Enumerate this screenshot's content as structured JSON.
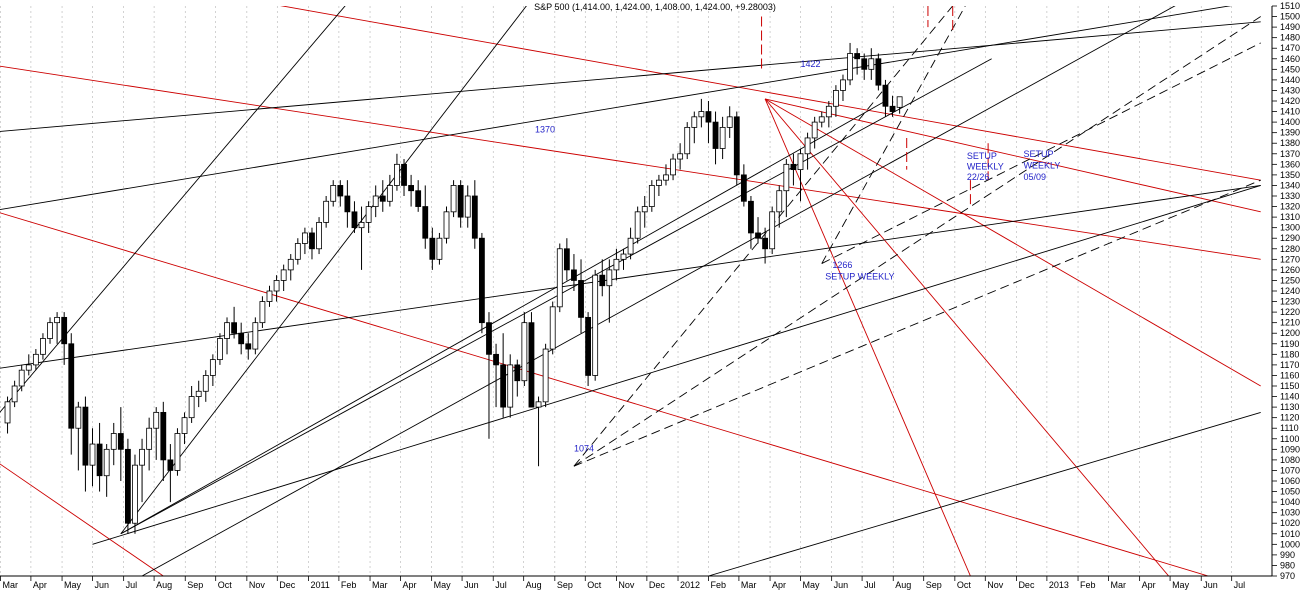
{
  "chart_data": {
    "type": "candlestick",
    "title": "S&P 500 (1,414.00, 1,424.00, 1,408.00, 1,424.00, +9.28003)",
    "y_axis": {
      "min": 970,
      "max": 1510,
      "step": 10,
      "position": "right"
    },
    "x_axis": {
      "tick_labels": [
        "Mar",
        "Apr",
        "May",
        "Jun",
        "Jul",
        "Aug",
        "Sep",
        "Oct",
        "Nov",
        "Dec",
        "2011",
        "Feb",
        "Mar",
        "Apr",
        "May",
        "Jun",
        "Jul",
        "Aug",
        "Sep",
        "Oct",
        "Nov",
        "Dec",
        "2012",
        "Feb",
        "Mar",
        "Apr",
        "May",
        "Jun",
        "Jul",
        "Aug",
        "Sep",
        "Oct",
        "Nov",
        "Dec",
        "2013",
        "Feb",
        "Mar",
        "Apr",
        "May",
        "Jun",
        "Jul"
      ],
      "weeks_from_first_label": [
        0,
        4.3,
        8.7,
        13,
        17.4,
        21.7,
        26.1,
        30.4,
        34.8,
        39.1,
        43.5,
        47.8,
        52.2,
        56.5,
        60.9,
        65.2,
        69.6,
        73.9,
        78.3,
        82.6,
        87,
        91.3,
        95.7,
        100,
        104.3,
        108.7,
        113,
        117.4,
        121.7,
        126.1,
        130.4,
        134.8,
        139.1,
        143.5,
        147.8,
        152.2,
        156.5,
        160.9,
        165.2,
        169.6,
        173.9
      ],
      "grid": "vertical dotted"
    },
    "candles_note": "weekly OHLC, open/high/low/close",
    "candles": [
      [
        1115,
        1140,
        1105,
        1135
      ],
      [
        1135,
        1155,
        1130,
        1150
      ],
      [
        1150,
        1170,
        1145,
        1165
      ],
      [
        1165,
        1180,
        1160,
        1170
      ],
      [
        1170,
        1185,
        1165,
        1180
      ],
      [
        1180,
        1200,
        1175,
        1195
      ],
      [
        1195,
        1215,
        1190,
        1210
      ],
      [
        1210,
        1220,
        1190,
        1215
      ],
      [
        1215,
        1220,
        1170,
        1190
      ],
      [
        1190,
        1200,
        1085,
        1110
      ],
      [
        1110,
        1135,
        1070,
        1130
      ],
      [
        1130,
        1140,
        1050,
        1075
      ],
      [
        1075,
        1110,
        1055,
        1095
      ],
      [
        1095,
        1115,
        1050,
        1065
      ],
      [
        1065,
        1095,
        1045,
        1090
      ],
      [
        1090,
        1115,
        1075,
        1105
      ],
      [
        1105,
        1130,
        1060,
        1090
      ],
      [
        1090,
        1100,
        1010,
        1020
      ],
      [
        1020,
        1085,
        1010,
        1075
      ],
      [
        1075,
        1100,
        1040,
        1090
      ],
      [
        1090,
        1120,
        1070,
        1110
      ],
      [
        1110,
        1130,
        1080,
        1125
      ],
      [
        1125,
        1135,
        1060,
        1080
      ],
      [
        1080,
        1095,
        1040,
        1070
      ],
      [
        1070,
        1110,
        1065,
        1105
      ],
      [
        1105,
        1125,
        1095,
        1120
      ],
      [
        1120,
        1150,
        1115,
        1140
      ],
      [
        1140,
        1155,
        1130,
        1145
      ],
      [
        1145,
        1165,
        1135,
        1160
      ],
      [
        1160,
        1180,
        1150,
        1175
      ],
      [
        1175,
        1200,
        1170,
        1195
      ],
      [
        1195,
        1215,
        1180,
        1210
      ],
      [
        1210,
        1225,
        1195,
        1200
      ],
      [
        1200,
        1210,
        1180,
        1190
      ],
      [
        1190,
        1200,
        1175,
        1185
      ],
      [
        1185,
        1215,
        1180,
        1210
      ],
      [
        1210,
        1235,
        1205,
        1230
      ],
      [
        1230,
        1245,
        1225,
        1240
      ],
      [
        1240,
        1255,
        1230,
        1250
      ],
      [
        1250,
        1265,
        1240,
        1260
      ],
      [
        1260,
        1275,
        1250,
        1270
      ],
      [
        1270,
        1290,
        1265,
        1285
      ],
      [
        1285,
        1300,
        1275,
        1295
      ],
      [
        1295,
        1300,
        1270,
        1280
      ],
      [
        1280,
        1310,
        1275,
        1305
      ],
      [
        1305,
        1330,
        1300,
        1325
      ],
      [
        1325,
        1345,
        1320,
        1340
      ],
      [
        1340,
        1345,
        1320,
        1330
      ],
      [
        1330,
        1345,
        1300,
        1315
      ],
      [
        1315,
        1325,
        1295,
        1300
      ],
      [
        1300,
        1320,
        1260,
        1305
      ],
      [
        1305,
        1325,
        1295,
        1320
      ],
      [
        1320,
        1340,
        1310,
        1330
      ],
      [
        1330,
        1345,
        1315,
        1325
      ],
      [
        1325,
        1350,
        1320,
        1340
      ],
      [
        1340,
        1370,
        1335,
        1360
      ],
      [
        1360,
        1365,
        1330,
        1340
      ],
      [
        1340,
        1350,
        1320,
        1335
      ],
      [
        1335,
        1345,
        1315,
        1320
      ],
      [
        1320,
        1340,
        1280,
        1290
      ],
      [
        1290,
        1300,
        1260,
        1270
      ],
      [
        1270,
        1295,
        1265,
        1290
      ],
      [
        1290,
        1320,
        1285,
        1315
      ],
      [
        1315,
        1345,
        1310,
        1340
      ],
      [
        1340,
        1345,
        1300,
        1310
      ],
      [
        1310,
        1340,
        1300,
        1330
      ],
      [
        1330,
        1345,
        1280,
        1290
      ],
      [
        1290,
        1295,
        1200,
        1210
      ],
      [
        1210,
        1220,
        1100,
        1180
      ],
      [
        1180,
        1190,
        1130,
        1170
      ],
      [
        1170,
        1200,
        1120,
        1130
      ],
      [
        1130,
        1180,
        1120,
        1170
      ],
      [
        1170,
        1175,
        1140,
        1155
      ],
      [
        1155,
        1220,
        1150,
        1210
      ],
      [
        1210,
        1220,
        1130,
        1130
      ],
      [
        1130,
        1140,
        1074,
        1135
      ],
      [
        1135,
        1190,
        1130,
        1185
      ],
      [
        1185,
        1230,
        1180,
        1225
      ],
      [
        1225,
        1285,
        1220,
        1280
      ],
      [
        1280,
        1290,
        1250,
        1260
      ],
      [
        1260,
        1275,
        1240,
        1250
      ],
      [
        1250,
        1270,
        1200,
        1215
      ],
      [
        1215,
        1220,
        1150,
        1160
      ],
      [
        1160,
        1260,
        1155,
        1255
      ],
      [
        1255,
        1270,
        1235,
        1245
      ],
      [
        1245,
        1270,
        1210,
        1260
      ],
      [
        1260,
        1280,
        1250,
        1270
      ],
      [
        1270,
        1280,
        1260,
        1275
      ],
      [
        1275,
        1300,
        1270,
        1290
      ],
      [
        1290,
        1320,
        1285,
        1315
      ],
      [
        1315,
        1330,
        1300,
        1320
      ],
      [
        1320,
        1345,
        1315,
        1340
      ],
      [
        1340,
        1350,
        1330,
        1345
      ],
      [
        1345,
        1360,
        1340,
        1350
      ],
      [
        1350,
        1370,
        1345,
        1365
      ],
      [
        1365,
        1380,
        1355,
        1370
      ],
      [
        1370,
        1400,
        1365,
        1395
      ],
      [
        1395,
        1410,
        1380,
        1405
      ],
      [
        1405,
        1422,
        1395,
        1410
      ],
      [
        1410,
        1420,
        1380,
        1400
      ],
      [
        1400,
        1410,
        1360,
        1375
      ],
      [
        1375,
        1405,
        1365,
        1395
      ],
      [
        1395,
        1415,
        1385,
        1405
      ],
      [
        1405,
        1410,
        1340,
        1350
      ],
      [
        1350,
        1360,
        1320,
        1325
      ],
      [
        1325,
        1330,
        1280,
        1295
      ],
      [
        1295,
        1310,
        1285,
        1290
      ],
      [
        1290,
        1300,
        1266,
        1280
      ],
      [
        1280,
        1320,
        1275,
        1315
      ],
      [
        1315,
        1340,
        1300,
        1335
      ],
      [
        1335,
        1365,
        1310,
        1360
      ],
      [
        1360,
        1370,
        1340,
        1355
      ],
      [
        1355,
        1375,
        1325,
        1370
      ],
      [
        1370,
        1390,
        1355,
        1385
      ],
      [
        1385,
        1405,
        1375,
        1400
      ],
      [
        1400,
        1410,
        1395,
        1405
      ],
      [
        1405,
        1420,
        1395,
        1415
      ],
      [
        1415,
        1435,
        1405,
        1430
      ],
      [
        1430,
        1445,
        1420,
        1440
      ],
      [
        1440,
        1475,
        1435,
        1465
      ],
      [
        1465,
        1470,
        1445,
        1460
      ],
      [
        1460,
        1465,
        1440,
        1450
      ],
      [
        1450,
        1470,
        1440,
        1460
      ],
      [
        1460,
        1465,
        1430,
        1435
      ],
      [
        1435,
        1440,
        1405,
        1415
      ],
      [
        1415,
        1425,
        1405,
        1410
      ],
      [
        1414,
        1424,
        1408,
        1424
      ]
    ],
    "annotations": [
      {
        "text": "1422",
        "x_week": 113,
        "y": 1452
      },
      {
        "text": "1370",
        "x_week": 75.5,
        "y": 1390
      },
      {
        "text": "1074",
        "x_week": 81,
        "y": 1088
      },
      {
        "text": "1266",
        "x_week": 117.5,
        "y": 1262
      },
      {
        "text": "SETUP WEEKLY",
        "x_week": 116.5,
        "y": 1251
      },
      {
        "text": "SETUP",
        "x_week": 136.5,
        "y": 1365
      },
      {
        "text": "WEEKLY",
        "x_week": 136.5,
        "y": 1355
      },
      {
        "text": "22/26",
        "x_week": 136.5,
        "y": 1345
      },
      {
        "text": "SETUP",
        "x_week": 144.5,
        "y": 1367
      },
      {
        "text": "WEEKLY",
        "x_week": 144.5,
        "y": 1356
      },
      {
        "text": "05/09",
        "x_week": 144.5,
        "y": 1345
      }
    ],
    "trendlines": [
      {
        "color": "#cc0000",
        "style": "solid",
        "from": [
          -2,
          1560
        ],
        "to": [
          178,
          1345
        ]
      },
      {
        "color": "#cc0000",
        "style": "solid",
        "from": [
          -2,
          1455
        ],
        "to": [
          178,
          1270
        ]
      },
      {
        "color": "#cc0000",
        "style": "solid",
        "from": [
          -2,
          1318
        ],
        "to": [
          178,
          955
        ]
      },
      {
        "color": "#cc0000",
        "style": "solid",
        "from": [
          -2,
          1085
        ],
        "to": [
          23,
          970
        ]
      },
      {
        "color": "#cc0000",
        "style": "solid",
        "from": [
          108,
          1422
        ],
        "to": [
          178,
          1150
        ]
      },
      {
        "color": "#cc0000",
        "style": "solid",
        "from": [
          108,
          1422
        ],
        "to": [
          165,
          970
        ]
      },
      {
        "color": "#cc0000",
        "style": "solid",
        "from": [
          108,
          1422
        ],
        "to": [
          137,
          970
        ]
      },
      {
        "color": "#cc0000",
        "style": "solid",
        "from": [
          108,
          1422
        ],
        "to": [
          178,
          1315
        ]
      },
      {
        "color": "#000000",
        "style": "solid",
        "from": [
          -2,
          1390
        ],
        "to": [
          178,
          1495
        ]
      },
      {
        "color": "#000000",
        "style": "solid",
        "from": [
          -2,
          1315
        ],
        "to": [
          178,
          1515
        ]
      },
      {
        "color": "#000000",
        "style": "solid",
        "from": [
          -2,
          1165
        ],
        "to": [
          178,
          1340
        ]
      },
      {
        "color": "#000000",
        "style": "solid",
        "from": [
          13,
          1000
        ],
        "to": [
          178,
          1340
        ]
      },
      {
        "color": "#000000",
        "style": "solid",
        "from": [
          100,
          970
        ],
        "to": [
          178,
          1125
        ]
      },
      {
        "color": "#000000",
        "style": "solid",
        "from": [
          17,
          1010
        ],
        "to": [
          80,
          1560
        ]
      },
      {
        "color": "#000000",
        "style": "solid",
        "from": [
          17,
          1010
        ],
        "to": [
          125,
          1420
        ]
      },
      {
        "color": "#000000",
        "style": "solid",
        "from": [
          17,
          1010
        ],
        "to": [
          140,
          1460
        ]
      },
      {
        "color": "#000000",
        "style": "solid",
        "from": [
          -2,
          1110
        ],
        "to": [
          55,
          1560
        ]
      },
      {
        "color": "#000000",
        "style": "solid",
        "from": [
          20,
          970
        ],
        "to": [
          178,
          1555
        ]
      },
      {
        "color": "#000000",
        "style": "dashed",
        "from": [
          81,
          1074
        ],
        "to": [
          178,
          1500
        ]
      },
      {
        "color": "#000000",
        "style": "dashed",
        "from": [
          81,
          1074
        ],
        "to": [
          140,
          1555
        ]
      },
      {
        "color": "#000000",
        "style": "dashed",
        "from": [
          81,
          1074
        ],
        "to": [
          178,
          1345
        ]
      },
      {
        "color": "#000000",
        "style": "dashed",
        "from": [
          116,
          1266
        ],
        "to": [
          178,
          1475
        ]
      },
      {
        "color": "#000000",
        "style": "dashed",
        "from": [
          116,
          1266
        ],
        "to": [
          140,
          1555
        ]
      }
    ],
    "vertical_markers": [
      {
        "color": "#cc0000",
        "x_week": 107.5,
        "y_from": 1500,
        "y_to": 1450
      },
      {
        "color": "#cc0000",
        "x_week": 131,
        "y_from": 1510,
        "y_to": 1490
      },
      {
        "color": "#cc0000",
        "x_week": 134.5,
        "y_from": 1510,
        "y_to": 1485
      },
      {
        "color": "#cc0000",
        "x_week": 128,
        "y_from": 1385,
        "y_to": 1355
      },
      {
        "color": "#cc0000",
        "x_week": 137,
        "y_from": 1345,
        "y_to": 1320
      },
      {
        "color": "#cc0000",
        "x_week": 139.5,
        "y_from": 1380,
        "y_to": 1345
      }
    ]
  }
}
